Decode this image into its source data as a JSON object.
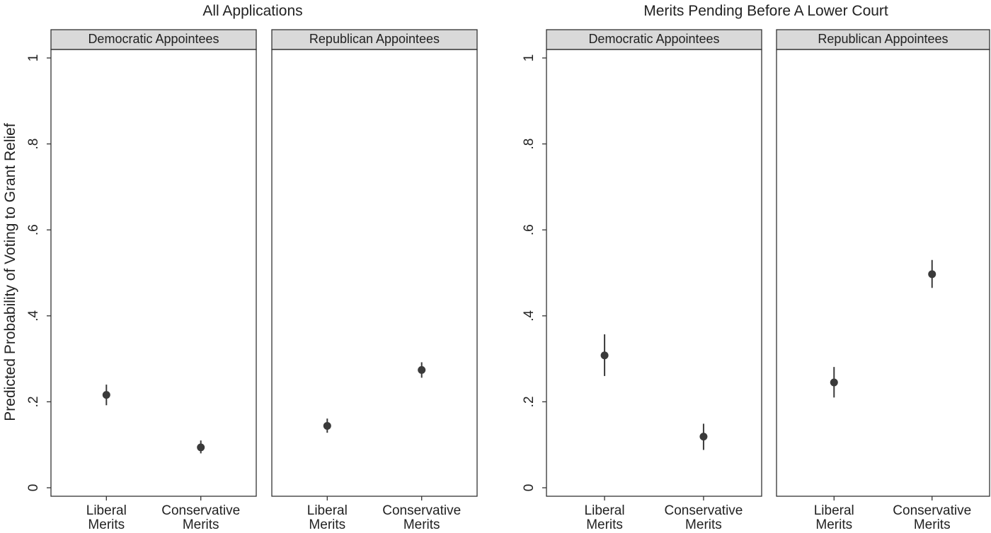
{
  "ylabel": "Predicted Probability of Voting to Grant Relief",
  "chart_data": [
    {
      "type": "scatter",
      "title": "All Applications",
      "ylabel": "Predicted Probability of Voting to Grant Relief",
      "ylim": [
        0,
        1
      ],
      "yticks": [
        "0",
        ".2",
        ".4",
        ".6",
        ".8",
        "1"
      ],
      "categories": [
        "Liberal Merits",
        "Conservative Merits"
      ],
      "panels": [
        {
          "label": "Democratic Appointees",
          "points": [
            {
              "category": "Liberal Merits",
              "value": 0.216,
              "ci": [
                0.192,
                0.24
              ]
            },
            {
              "category": "Conservative Merits",
              "value": 0.094,
              "ci": [
                0.08,
                0.11
              ]
            }
          ]
        },
        {
          "label": "Republican Appointees",
          "points": [
            {
              "category": "Liberal Merits",
              "value": 0.144,
              "ci": [
                0.128,
                0.161
              ]
            },
            {
              "category": "Conservative Merits",
              "value": 0.274,
              "ci": [
                0.256,
                0.292
              ]
            }
          ]
        }
      ]
    },
    {
      "type": "scatter",
      "title": "Merits Pending Before A Lower Court",
      "ylim": [
        0,
        1
      ],
      "yticks": [
        "0",
        ".2",
        ".4",
        ".6",
        ".8",
        "1"
      ],
      "categories": [
        "Liberal Merits",
        "Conservative Merits"
      ],
      "panels": [
        {
          "label": "Democratic Appointees",
          "points": [
            {
              "category": "Liberal Merits",
              "value": 0.308,
              "ci": [
                0.26,
                0.357
              ]
            },
            {
              "category": "Conservative Merits",
              "value": 0.119,
              "ci": [
                0.088,
                0.149
              ]
            }
          ]
        },
        {
          "label": "Republican Appointees",
          "points": [
            {
              "category": "Liberal Merits",
              "value": 0.245,
              "ci": [
                0.21,
                0.281
              ]
            },
            {
              "category": "Conservative Merits",
              "value": 0.497,
              "ci": [
                0.465,
                0.53
              ]
            }
          ]
        }
      ]
    }
  ],
  "colors": {
    "point": "#3a3a3a",
    "strip": "#d9d9d9",
    "frame": "#333333"
  }
}
